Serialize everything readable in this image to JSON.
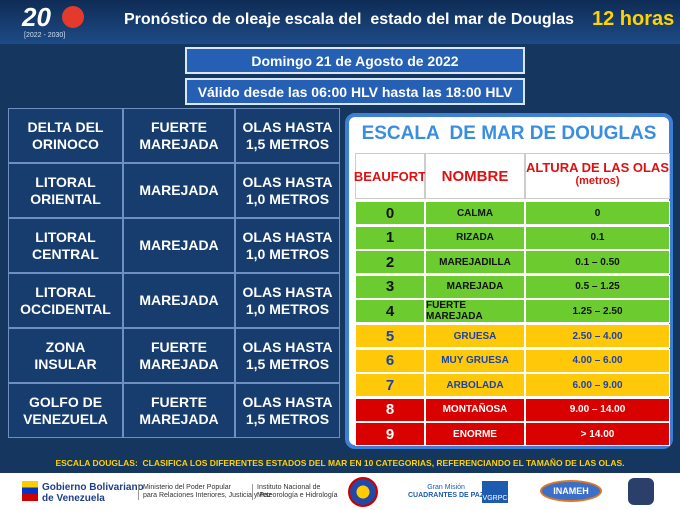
{
  "header": {
    "logo_mark": "20",
    "logo_years": "[2022 - 2030]",
    "title": "Pronóstico de oleaje escala del  estado del mar de Douglas",
    "period": "12 horas"
  },
  "date": "Domingo 21 de Agosto de 2022",
  "validity": "Válido desde las 06:00 HLV hasta las 18:00 HLV",
  "forecast_table": {
    "rows": [
      [
        "DELTA DEL ORINOCO",
        "FUERTE MAREJADA",
        "OLAS HASTA 1,5 METROS"
      ],
      [
        "LITORAL ORIENTAL",
        "MAREJADA",
        "OLAS HASTA 1,0 METROS"
      ],
      [
        "LITORAL CENTRAL",
        "MAREJADA",
        "OLAS HASTA 1,0 METROS"
      ],
      [
        "LITORAL OCCIDENTAL",
        "MAREJADA",
        "OLAS HASTA 1,0 METROS"
      ],
      [
        "ZONA INSULAR",
        "FUERTE MAREJADA",
        "OLAS HASTA 1,5 METROS"
      ],
      [
        "GOLFO DE VENEZUELA",
        "FUERTE MAREJADA",
        "OLAS HASTA 1,5 METROS"
      ]
    ]
  },
  "douglas_scale": {
    "title": "ESCALA  DE MAR DE DOUGLAS",
    "headers": [
      "BEAUFORT",
      "NOMBRE",
      "ALTURA DE LAS OLAS"
    ],
    "unit": "(metros)",
    "rows": [
      [
        "0",
        "CALMA",
        "0"
      ],
      [
        "1",
        "RIZADA",
        "0.1"
      ],
      [
        "2",
        "MAREJADILLA",
        "0.1 – 0.50"
      ],
      [
        "3",
        "MAREJADA",
        "0.5 – 1.25"
      ],
      [
        "4",
        "FUERTE MAREJADA",
        "1.25 – 2.50"
      ],
      [
        "5",
        "GRUESA",
        "2.50 – 4.00"
      ],
      [
        "6",
        "MUY GRUESA",
        "4.00 – 6.00"
      ],
      [
        "7",
        "ARBOLADA",
        "6.00 – 9.00"
      ],
      [
        "8",
        "MONTAÑOSA",
        "9.00 – 14.00"
      ],
      [
        "9",
        "ENORME",
        "> 14.00"
      ]
    ]
  },
  "footnote": {
    "label": "ESCALA DOUGLAS:",
    "text": "CLASIFICA LOS DIFERENTES ESTADOS DEL MAR EN 10 CATEGORIAS, REFERENCIANDO EL TAMAÑO DE LAS OLAS."
  },
  "logos": {
    "gov_line1": "Gobierno Bolivariano",
    "gov_line2": "de Venezuela",
    "ministry_line1": "Ministerio del Poder Popular",
    "ministry_line2": "para Relaciones Interiores, Justicia y Paz",
    "institute_line1": "Instituto Nacional de",
    "institute_line2": "Meteorología e Hidrología",
    "mission_line1": "Gran Misión",
    "mission_line2": "CUADRANTES DE PAZ",
    "vgrpc": "VGRPC",
    "inameh": "INAMEH"
  }
}
